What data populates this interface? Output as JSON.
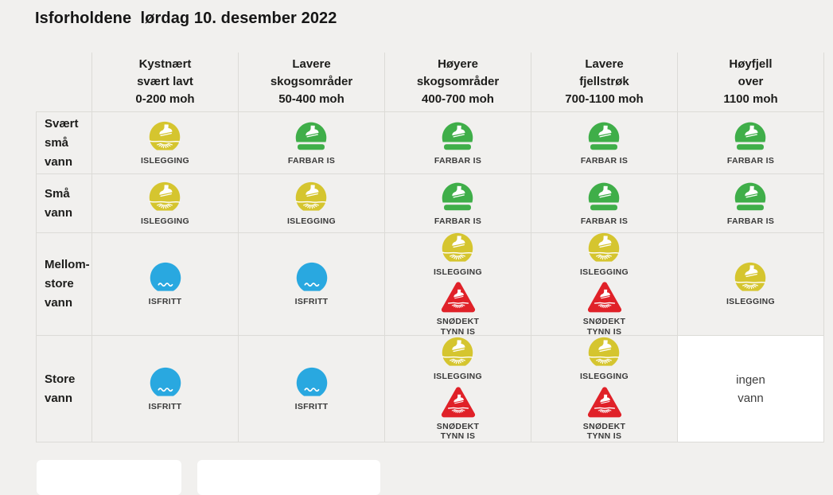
{
  "page": {
    "title": "Isforholdene  lørdag 10. desember 2022",
    "background_color": "#f1f0ee",
    "grid_line_color": "#dcdbd7"
  },
  "icons": {
    "islegging": {
      "label_lines": [
        "ISLEGGING"
      ],
      "color": "#d5c52f",
      "symbol": "islegging"
    },
    "farbar_is": {
      "label_lines": [
        "FARBAR IS"
      ],
      "color": "#3fae49",
      "symbol": "farbar"
    },
    "isfritt": {
      "label_lines": [
        "ISFRITT"
      ],
      "color": "#29a8e0",
      "symbol": "isfritt"
    },
    "snodekt_tynn_is": {
      "label_lines": [
        "SNØDEKT",
        "TYNN IS"
      ],
      "color": "#e02128",
      "symbol": "snodekt"
    }
  },
  "table": {
    "columns": [
      {
        "lines": [
          "Kystnært",
          "svært lavt",
          "0-200 moh"
        ]
      },
      {
        "lines": [
          "Lavere",
          "skogsområder",
          "50-400 moh"
        ]
      },
      {
        "lines": [
          "Høyere",
          "skogsområder",
          "400-700 moh"
        ]
      },
      {
        "lines": [
          "Lavere",
          "fjellstrøk",
          "700-1100 moh"
        ]
      },
      {
        "lines": [
          "Høyfjell",
          "over",
          "1100 moh"
        ]
      }
    ],
    "rows": [
      {
        "label_lines": [
          "Svært",
          "små",
          "vann"
        ],
        "cells": [
          {
            "icons": [
              "islegging"
            ]
          },
          {
            "icons": [
              "farbar_is"
            ]
          },
          {
            "icons": [
              "farbar_is"
            ]
          },
          {
            "icons": [
              "farbar_is"
            ]
          },
          {
            "icons": [
              "farbar_is"
            ]
          }
        ]
      },
      {
        "label_lines": [
          "Små",
          "vann"
        ],
        "cells": [
          {
            "icons": [
              "islegging"
            ]
          },
          {
            "icons": [
              "islegging"
            ]
          },
          {
            "icons": [
              "farbar_is"
            ]
          },
          {
            "icons": [
              "farbar_is"
            ]
          },
          {
            "icons": [
              "farbar_is"
            ]
          }
        ]
      },
      {
        "label_lines": [
          "Mellom-",
          "store",
          "vann"
        ],
        "cells": [
          {
            "icons": [
              "isfritt"
            ]
          },
          {
            "icons": [
              "isfritt"
            ]
          },
          {
            "icons": [
              "islegging",
              "snodekt_tynn_is"
            ]
          },
          {
            "icons": [
              "islegging",
              "snodekt_tynn_is"
            ]
          },
          {
            "icons": [
              "islegging"
            ]
          }
        ]
      },
      {
        "label_lines": [
          "Store",
          "vann"
        ],
        "cells": [
          {
            "icons": [
              "isfritt"
            ]
          },
          {
            "icons": [
              "isfritt"
            ]
          },
          {
            "icons": [
              "islegging",
              "snodekt_tynn_is"
            ]
          },
          {
            "icons": [
              "islegging",
              "snodekt_tynn_is"
            ]
          },
          {
            "text_lines": [
              "ingen",
              "vann"
            ],
            "highlight": "white"
          }
        ]
      }
    ]
  },
  "bottom_cards": [
    {
      "note": ""
    },
    {
      "note": ""
    }
  ]
}
